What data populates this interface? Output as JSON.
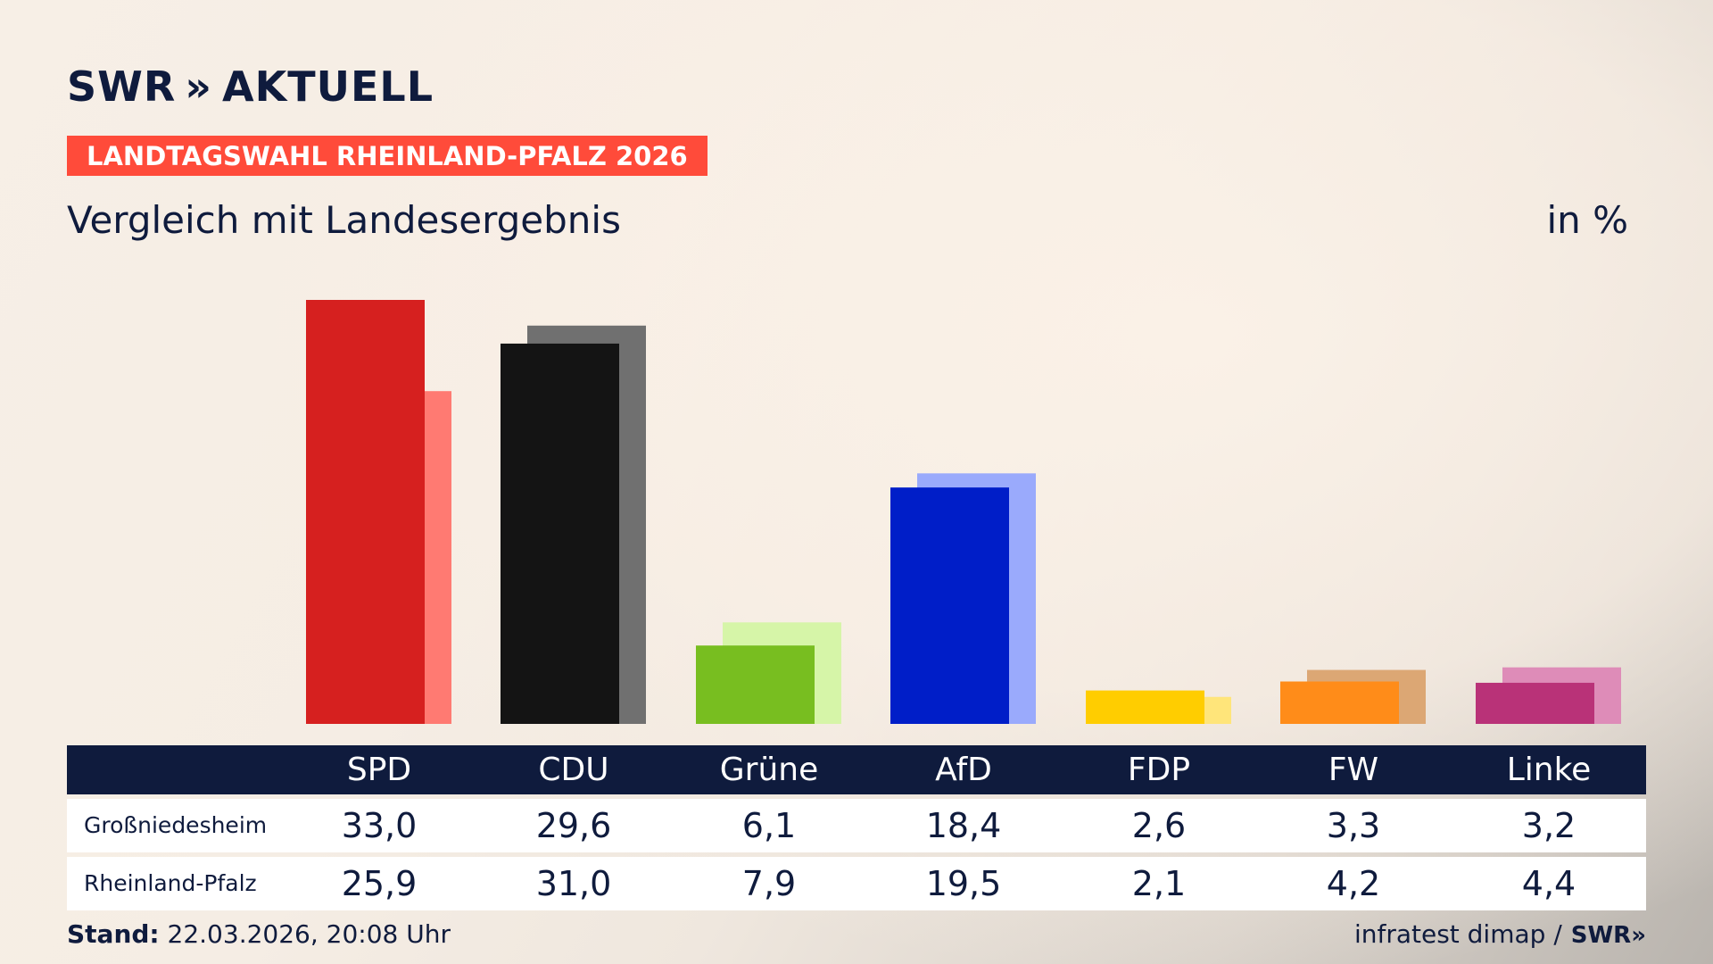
{
  "brand": {
    "logo_left": "SWR",
    "logo_arrows": "»",
    "logo_right": "AKTUELL"
  },
  "banner": "LANDTAGSWAHL RHEINLAND-PFALZ 2026",
  "subtitle": "Vergleich mit Landesergebnis",
  "unit": "in %",
  "footer": {
    "stand_label": "Stand:",
    "stand_value": "22.03.2026, 20:08 Uhr",
    "source": "infratest dimap /",
    "source_logo": "SWR»"
  },
  "table": {
    "rows": [
      {
        "label": "Großniedesheim",
        "values": [
          "33,0",
          "29,6",
          "6,1",
          "18,4",
          "2,6",
          "3,3",
          "3,2"
        ]
      },
      {
        "label": "Rheinland-Pfalz",
        "values": [
          "25,9",
          "31,0",
          "7,9",
          "19,5",
          "2,1",
          "4,2",
          "4,4"
        ]
      }
    ]
  },
  "chart_data": {
    "type": "bar",
    "categories": [
      "SPD",
      "CDU",
      "Grüne",
      "AfD",
      "FDP",
      "FW",
      "Linke"
    ],
    "series": [
      {
        "name": "Großniedesheim",
        "values": [
          33.0,
          29.6,
          6.1,
          18.4,
          2.6,
          3.3,
          3.2
        ],
        "colors": [
          "#d6201f",
          "#141414",
          "#78be20",
          "#001ec8",
          "#ffcd00",
          "#ff8c19",
          "#b93278"
        ]
      },
      {
        "name": "Rheinland-Pfalz",
        "values": [
          25.9,
          31.0,
          7.9,
          19.5,
          2.1,
          4.2,
          4.4
        ],
        "colors": [
          "#ff7a72",
          "#707070",
          "#d6f5a8",
          "#9aaafc",
          "#ffe57a",
          "#dca774",
          "#de8cb8"
        ]
      }
    ],
    "ylim": [
      0,
      33
    ],
    "grid": false,
    "legend": "none"
  }
}
